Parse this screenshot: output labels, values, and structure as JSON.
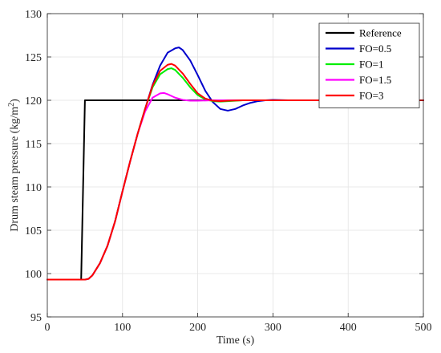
{
  "chart_data": {
    "type": "line",
    "xlabel": "Time (s)",
    "ylabel_main": "Drum steam pressure (kg/m",
    "ylabel_sup": "2",
    "ylabel_close": ")",
    "xlim": [
      0,
      500
    ],
    "ylim": [
      95,
      130
    ],
    "xticks": [
      0,
      100,
      200,
      300,
      400,
      500
    ],
    "yticks": [
      95,
      100,
      105,
      110,
      115,
      120,
      125,
      130
    ],
    "grid": true,
    "legend_position": "top-right",
    "series": [
      {
        "name": "Reference",
        "color": "#000000",
        "x": [
          0,
          45,
          50,
          500
        ],
        "y": [
          99.3,
          99.3,
          120,
          120
        ]
      },
      {
        "name": "FO=0.5",
        "color": "#0000cc",
        "x": [
          0,
          50,
          55,
          60,
          70,
          80,
          90,
          100,
          110,
          120,
          130,
          140,
          150,
          160,
          170,
          175,
          180,
          190,
          200,
          210,
          220,
          230,
          240,
          250,
          260,
          270,
          280,
          290,
          300,
          320,
          350,
          400,
          450,
          500
        ],
        "y": [
          99.3,
          99.3,
          99.4,
          99.8,
          101.2,
          103.2,
          106.0,
          109.5,
          112.9,
          116.1,
          119.0,
          121.8,
          124.0,
          125.5,
          126.0,
          126.1,
          125.8,
          124.6,
          122.9,
          121.1,
          119.8,
          119.0,
          118.8,
          119.0,
          119.4,
          119.7,
          119.9,
          120.0,
          120.05,
          120.0,
          120.0,
          120.0,
          120.0,
          120.0
        ]
      },
      {
        "name": "FO=1",
        "color": "#00ee00",
        "x": [
          0,
          50,
          55,
          60,
          70,
          80,
          90,
          100,
          110,
          120,
          130,
          140,
          150,
          160,
          165,
          170,
          180,
          190,
          200,
          210,
          220,
          230,
          240,
          260,
          280,
          300,
          350,
          400,
          450,
          500
        ],
        "y": [
          99.3,
          99.3,
          99.4,
          99.8,
          101.2,
          103.2,
          106.0,
          109.5,
          112.9,
          116.1,
          119.0,
          121.5,
          123.0,
          123.6,
          123.7,
          123.5,
          122.6,
          121.5,
          120.6,
          120.1,
          119.9,
          119.85,
          119.9,
          120.0,
          120.0,
          120.0,
          120.0,
          120.0,
          120.0,
          120.0
        ]
      },
      {
        "name": "FO=1.5",
        "color": "#ff00ff",
        "x": [
          0,
          50,
          55,
          60,
          70,
          80,
          90,
          100,
          110,
          120,
          130,
          140,
          150,
          155,
          160,
          170,
          180,
          190,
          200,
          220,
          250,
          300,
          400,
          500
        ],
        "y": [
          99.3,
          99.3,
          99.4,
          99.8,
          101.2,
          103.2,
          106.0,
          109.5,
          112.9,
          116.1,
          118.7,
          120.3,
          120.8,
          120.85,
          120.7,
          120.3,
          120.05,
          119.95,
          119.95,
          120.0,
          120.0,
          120.0,
          120.0,
          120.0
        ]
      },
      {
        "name": "FO=3",
        "color": "#ff0000",
        "x": [
          0,
          50,
          55,
          60,
          70,
          80,
          90,
          100,
          110,
          120,
          130,
          140,
          150,
          160,
          165,
          170,
          180,
          190,
          200,
          210,
          220,
          230,
          240,
          260,
          280,
          300,
          350,
          400,
          450,
          500
        ],
        "y": [
          99.3,
          99.3,
          99.4,
          99.8,
          101.2,
          103.2,
          106.0,
          109.5,
          112.9,
          116.1,
          119.0,
          121.7,
          123.4,
          124.1,
          124.2,
          124.0,
          123.1,
          121.9,
          120.8,
          120.2,
          119.95,
          119.9,
          119.95,
          120.0,
          120.0,
          120.0,
          120.0,
          120.0,
          120.0,
          120.0
        ]
      }
    ]
  }
}
